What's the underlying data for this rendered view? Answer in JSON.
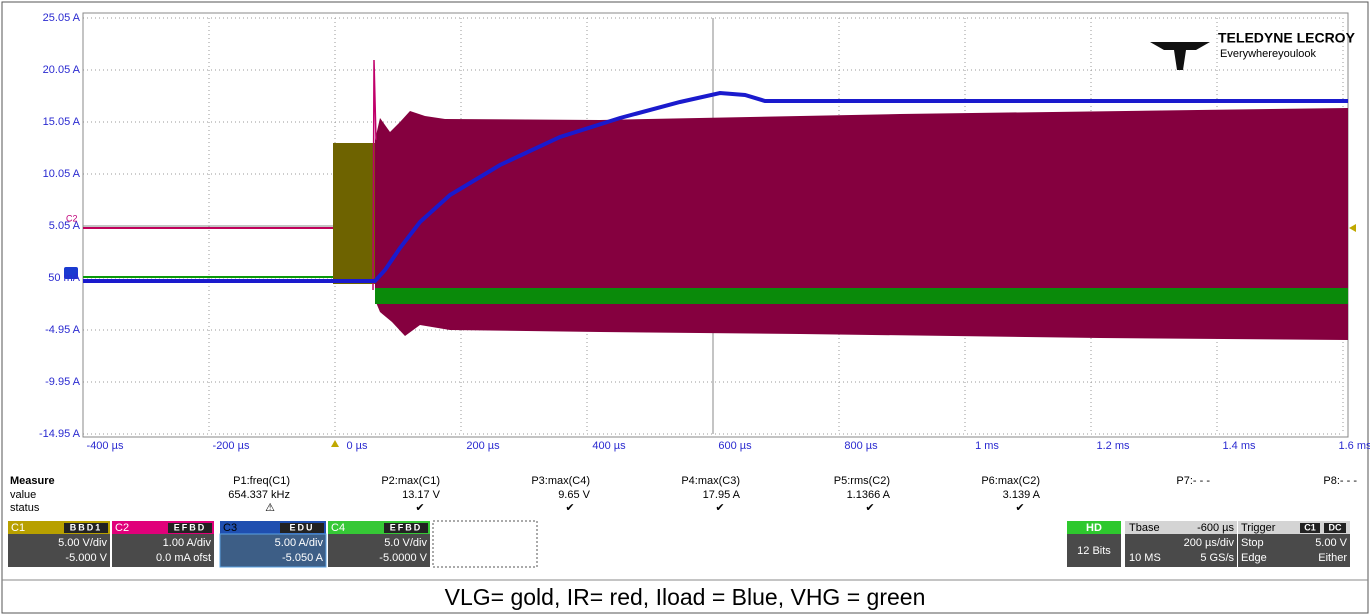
{
  "logo": {
    "brand": "TELEDYNE LECROY",
    "tagline": "Everywhereyoulook"
  },
  "axis": {
    "y_labels": [
      "25.05 A",
      "20.05 A",
      "15.05 A",
      "10.05 A",
      "5.05 A",
      "50 mA",
      "-4.95 A",
      "-9.95 A",
      "-14.95 A"
    ],
    "x_labels": [
      "-400 µs",
      "-200 µs",
      "0 µs",
      "200 µs",
      "400 µs",
      "600 µs",
      "800 µs",
      "1 ms",
      "1.2 ms",
      "1.4 ms",
      "1.6 ms"
    ],
    "marker": "C2"
  },
  "measure": {
    "header": "Measure",
    "value_label": "value",
    "status_label": "status",
    "params": [
      "P1:freq(C1)",
      "P2:max(C1)",
      "P3:max(C4)",
      "P4:max(C3)",
      "P5:rms(C2)",
      "P6:max(C2)",
      "P7:- - -",
      "P8:- - -"
    ],
    "values": [
      "654.337 kHz",
      "13.17 V",
      "9.65 V",
      "17.95 A",
      "1.1366 A",
      "3.139 A"
    ],
    "status": [
      "⚠",
      "✔",
      "✔",
      "✔",
      "✔",
      "✔"
    ]
  },
  "channels": [
    {
      "name": "C1",
      "badge": "BBD1",
      "scale": "5.00 V/div",
      "offset": "-5.000 V"
    },
    {
      "name": "C2",
      "badge": "EFBD",
      "scale": "1.00 A/div",
      "offset": "0.0 mA ofst"
    },
    {
      "name": "C3",
      "badge": "EDU",
      "scale": "5.00 A/div",
      "offset": "-5.050 A"
    },
    {
      "name": "C4",
      "badge": "EFBD",
      "scale": "5.0 V/div",
      "offset": "-5.0000 V"
    }
  ],
  "hd": {
    "title": "HD",
    "bits": "12 Bits"
  },
  "timebase": {
    "title": "Tbase",
    "delay": "-600 µs",
    "scale": "200 µs/div",
    "points": "10 MS",
    "rate": "5 GS/s"
  },
  "trigger": {
    "title": "Trigger",
    "badge1": "C1",
    "badge2": "DC",
    "mode": "Stop",
    "level": "5.00 V",
    "type": "Edge",
    "slope": "Either"
  },
  "caption": "VLG= gold, IR= red, Iload = Blue, VHG = green"
}
